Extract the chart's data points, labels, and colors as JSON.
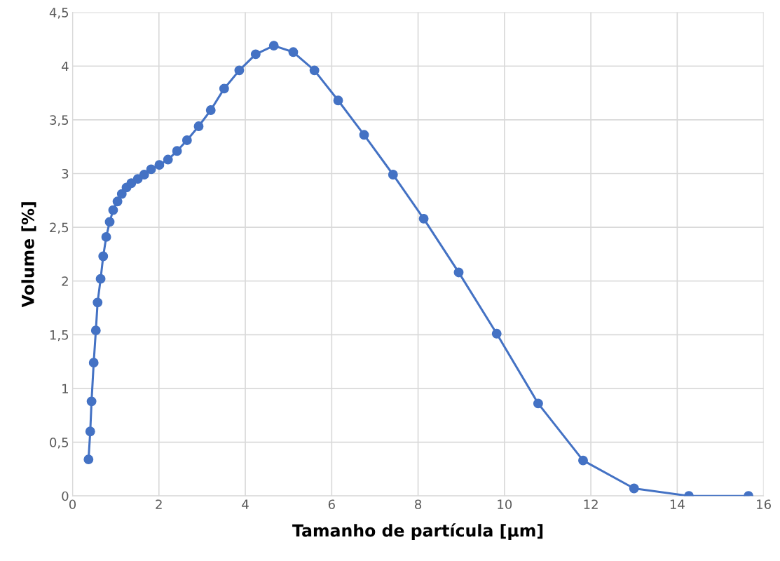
{
  "chart_data": {
    "type": "line",
    "xlabel": "Tamanho de partícula [µm]",
    "ylabel": "Volume [%]",
    "x": [
      0.37,
      0.41,
      0.44,
      0.49,
      0.54,
      0.58,
      0.65,
      0.71,
      0.78,
      0.86,
      0.94,
      1.04,
      1.14,
      1.25,
      1.36,
      1.51,
      1.66,
      1.82,
      2.01,
      2.21,
      2.42,
      2.65,
      2.92,
      3.2,
      3.51,
      3.86,
      4.24,
      4.66,
      5.11,
      5.6,
      6.15,
      6.75,
      7.42,
      8.13,
      8.94,
      9.82,
      10.78,
      11.82,
      13.0,
      14.27,
      15.65
    ],
    "series": [
      {
        "color": "#4472c4",
        "values": [
          0.34,
          0.6,
          0.88,
          1.24,
          1.54,
          1.8,
          2.02,
          2.23,
          2.41,
          2.55,
          2.66,
          2.74,
          2.81,
          2.87,
          2.91,
          2.95,
          2.99,
          3.04,
          3.08,
          3.13,
          3.21,
          3.31,
          3.44,
          3.59,
          3.79,
          3.96,
          4.11,
          4.19,
          4.13,
          3.96,
          3.68,
          3.36,
          2.99,
          2.58,
          2.08,
          1.51,
          0.86,
          0.33,
          0.07,
          0.0,
          0.0
        ]
      }
    ],
    "xlim": [
      0,
      16
    ],
    "xticks": [
      0,
      2,
      4,
      6,
      8,
      10,
      12,
      14,
      16
    ],
    "ylim": [
      0,
      4.5
    ],
    "yticks": [
      0,
      {
        "value": 0.5,
        "label": "0,5"
      },
      1,
      {
        "value": 1.5,
        "label": "1,5"
      },
      2,
      {
        "value": 2.5,
        "label": "2,5"
      },
      3,
      {
        "value": 3.5,
        "label": "3,5"
      },
      4,
      {
        "value": 4.5,
        "label": "4,5"
      }
    ],
    "grid": true,
    "marker": "circle",
    "line_style": "solid"
  }
}
